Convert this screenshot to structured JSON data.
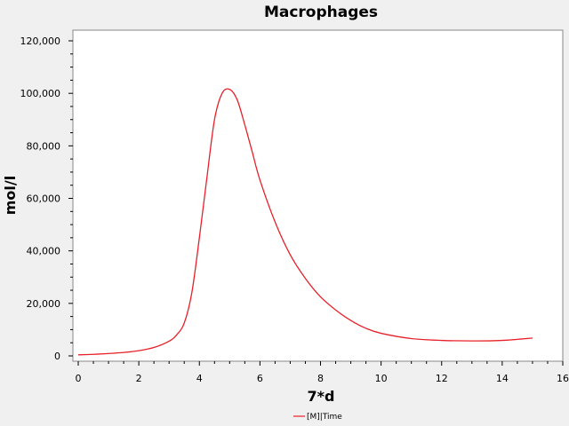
{
  "chart_data": {
    "type": "line",
    "title": "Macrophages",
    "xlabel": "7*d",
    "ylabel": "mol/l",
    "xlim": [
      0,
      16
    ],
    "ylim": [
      0,
      120000
    ],
    "x_ticks": [
      0,
      2,
      4,
      6,
      8,
      10,
      12,
      14,
      16
    ],
    "x_tick_labels": [
      "0",
      "2",
      "4",
      "6",
      "8",
      "10",
      "12",
      "14",
      "16"
    ],
    "y_ticks": [
      0,
      20000,
      40000,
      60000,
      80000,
      100000,
      120000
    ],
    "y_tick_labels": [
      "0",
      "20,000",
      "40,000",
      "60,000",
      "80,000",
      "100,000",
      "120,000"
    ],
    "grid": false,
    "legend_position": "bottom-center",
    "series": [
      {
        "name": "[M]|Time",
        "color": "#e8202a",
        "x": [
          0,
          0.5,
          1,
          1.5,
          2,
          2.5,
          3,
          3.25,
          3.5,
          3.75,
          4,
          4.25,
          4.5,
          4.75,
          5,
          5.25,
          5.5,
          5.75,
          6,
          6.5,
          7,
          7.5,
          8,
          8.5,
          9,
          9.5,
          10,
          11,
          12,
          13,
          14,
          15
        ],
        "y": [
          400,
          600,
          900,
          1300,
          2000,
          3200,
          5600,
          8000,
          12500,
          24000,
          45000,
          68000,
          90000,
          100000,
          101500,
          97500,
          88000,
          77500,
          67000,
          51000,
          38500,
          29500,
          22500,
          17500,
          13500,
          10500,
          8600,
          6600,
          5900,
          5700,
          5900,
          6800
        ]
      }
    ]
  }
}
